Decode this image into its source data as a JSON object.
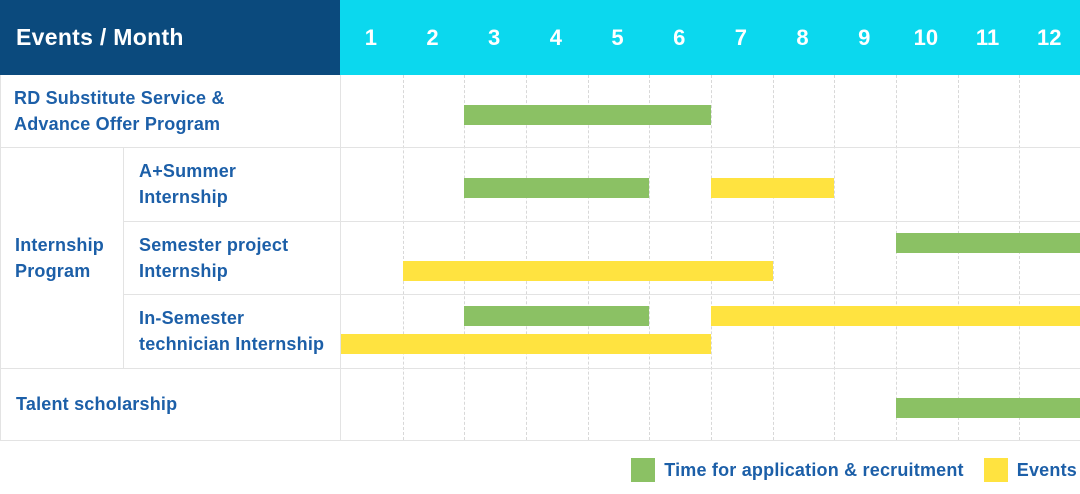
{
  "header": {
    "events_month_label": "Events / Month",
    "months": [
      "1",
      "2",
      "3",
      "4",
      "5",
      "6",
      "7",
      "8",
      "9",
      "10",
      "11",
      "12"
    ]
  },
  "colors": {
    "header_navy": "#0b4a7d",
    "header_cyan": "#0bd8ee",
    "bar_green": "#8bc164",
    "bar_yellow": "#ffe340",
    "label_blue": "#1c5fa8"
  },
  "group_label_lines": [
    "Internship",
    "Program"
  ],
  "chart_data": {
    "type": "gantt",
    "unit": "month",
    "x_range": [
      1,
      12
    ],
    "months": [
      1,
      2,
      3,
      4,
      5,
      6,
      7,
      8,
      9,
      10,
      11,
      12
    ],
    "legend": [
      {
        "key": "recruitment",
        "label": "Time for application & recruitment",
        "color": "#8bc164"
      },
      {
        "key": "event",
        "label": "Events",
        "color": "#ffe340"
      }
    ],
    "rows": [
      {
        "label": "RD Substitute Service & Advance Offer Program",
        "label_lines": [
          "RD Substitute Service &",
          "Advance Offer Program"
        ],
        "group": "",
        "tracks": [
          [
            {
              "kind": "recruitment",
              "start_month": 3,
              "end_month": 6
            }
          ]
        ]
      },
      {
        "label": "A+Summer Internship",
        "label_lines": [
          "A+Summer",
          "Internship"
        ],
        "group": "Internship Program",
        "tracks": [
          [
            {
              "kind": "recruitment",
              "start_month": 3,
              "end_month": 5
            },
            {
              "kind": "event",
              "start_month": 7,
              "end_month": 8
            }
          ]
        ]
      },
      {
        "label": "Semester project Internship",
        "label_lines": [
          "Semester project",
          "Internship"
        ],
        "group": "Internship Program",
        "tracks": [
          [
            {
              "kind": "recruitment",
              "start_month": 10,
              "end_month": 12
            }
          ],
          [
            {
              "kind": "event",
              "start_month": 2,
              "end_month": 7
            }
          ]
        ]
      },
      {
        "label": "In-Semester technician Internship",
        "label_lines": [
          "In-Semester",
          "technician Internship"
        ],
        "group": "Internship Program",
        "tracks": [
          [
            {
              "kind": "recruitment",
              "start_month": 3,
              "end_month": 5
            },
            {
              "kind": "event",
              "start_month": 7,
              "end_month": 12
            }
          ],
          [
            {
              "kind": "event",
              "start_month": 1,
              "end_month": 6
            }
          ]
        ]
      },
      {
        "label": "Talent scholarship",
        "label_lines": [
          "Talent scholarship"
        ],
        "group": "",
        "tracks": [
          [
            {
              "kind": "recruitment",
              "start_month": 10,
              "end_month": 12
            }
          ]
        ]
      }
    ]
  },
  "legend": {
    "recruitment_label": "Time for application & recruitment",
    "events_label": "Events"
  }
}
